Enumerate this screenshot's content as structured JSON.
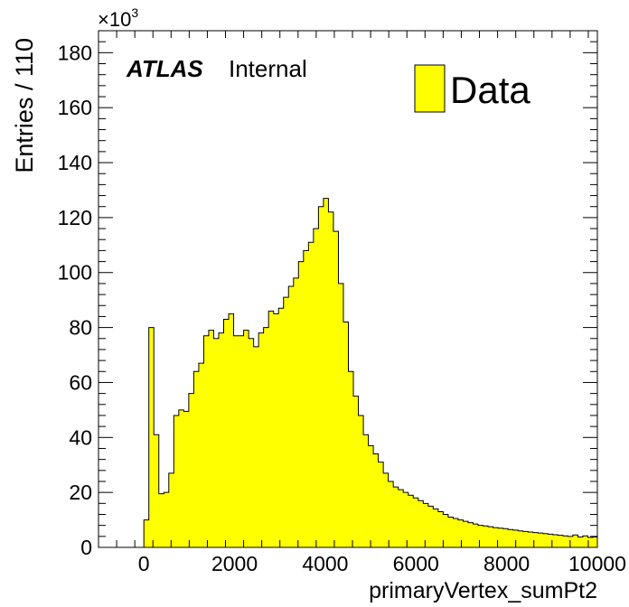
{
  "chart_data": {
    "type": "histogram",
    "xlabel": "primaryVertex_sumPt2",
    "ylabel": "Entries / 110",
    "y_multiplier_label": "×10",
    "y_multiplier_exponent": "3",
    "xlim": [
      -1000,
      10000
    ],
    "ylim": [
      0,
      188
    ],
    "x_ticks": [
      0,
      2000,
      4000,
      6000,
      8000,
      10000
    ],
    "y_ticks": [
      0,
      20,
      40,
      60,
      80,
      100,
      120,
      140,
      160,
      180
    ],
    "bin_width": 110,
    "fill_color": "#ffff00",
    "edge_color": "#000000",
    "grid": false,
    "legend": {
      "position": "top-right",
      "entries": [
        "Data"
      ]
    },
    "annotation": {
      "bold_italic": "ATLAS",
      "normal": "Internal"
    },
    "series": [
      {
        "name": "Data",
        "bin_edges_start": 0,
        "values": [
          10,
          80,
          41,
          19.5,
          20,
          27,
          48,
          50,
          49.5,
          56,
          64,
          67,
          77,
          79,
          76,
          78,
          83,
          85,
          77,
          77,
          79,
          76,
          73,
          78,
          80,
          86,
          85,
          87,
          91,
          95,
          98,
          104,
          108,
          111,
          116,
          124,
          127,
          122,
          115,
          96,
          82,
          64,
          55,
          48,
          41,
          37,
          34,
          31,
          27,
          24,
          22,
          21,
          20,
          19,
          18,
          17,
          16,
          15,
          14,
          13,
          12,
          11,
          10.5,
          10,
          9.5,
          9,
          8.5,
          8,
          7.8,
          7.5,
          7.2,
          7,
          6.8,
          6.5,
          6.3,
          6,
          5.8,
          5.6,
          5.4,
          5.2,
          5,
          4.8,
          4.6,
          4.4,
          4.2,
          4,
          4.5,
          3.8,
          4.2,
          3.6,
          3.8,
          3.4,
          3.2
        ]
      }
    ]
  }
}
